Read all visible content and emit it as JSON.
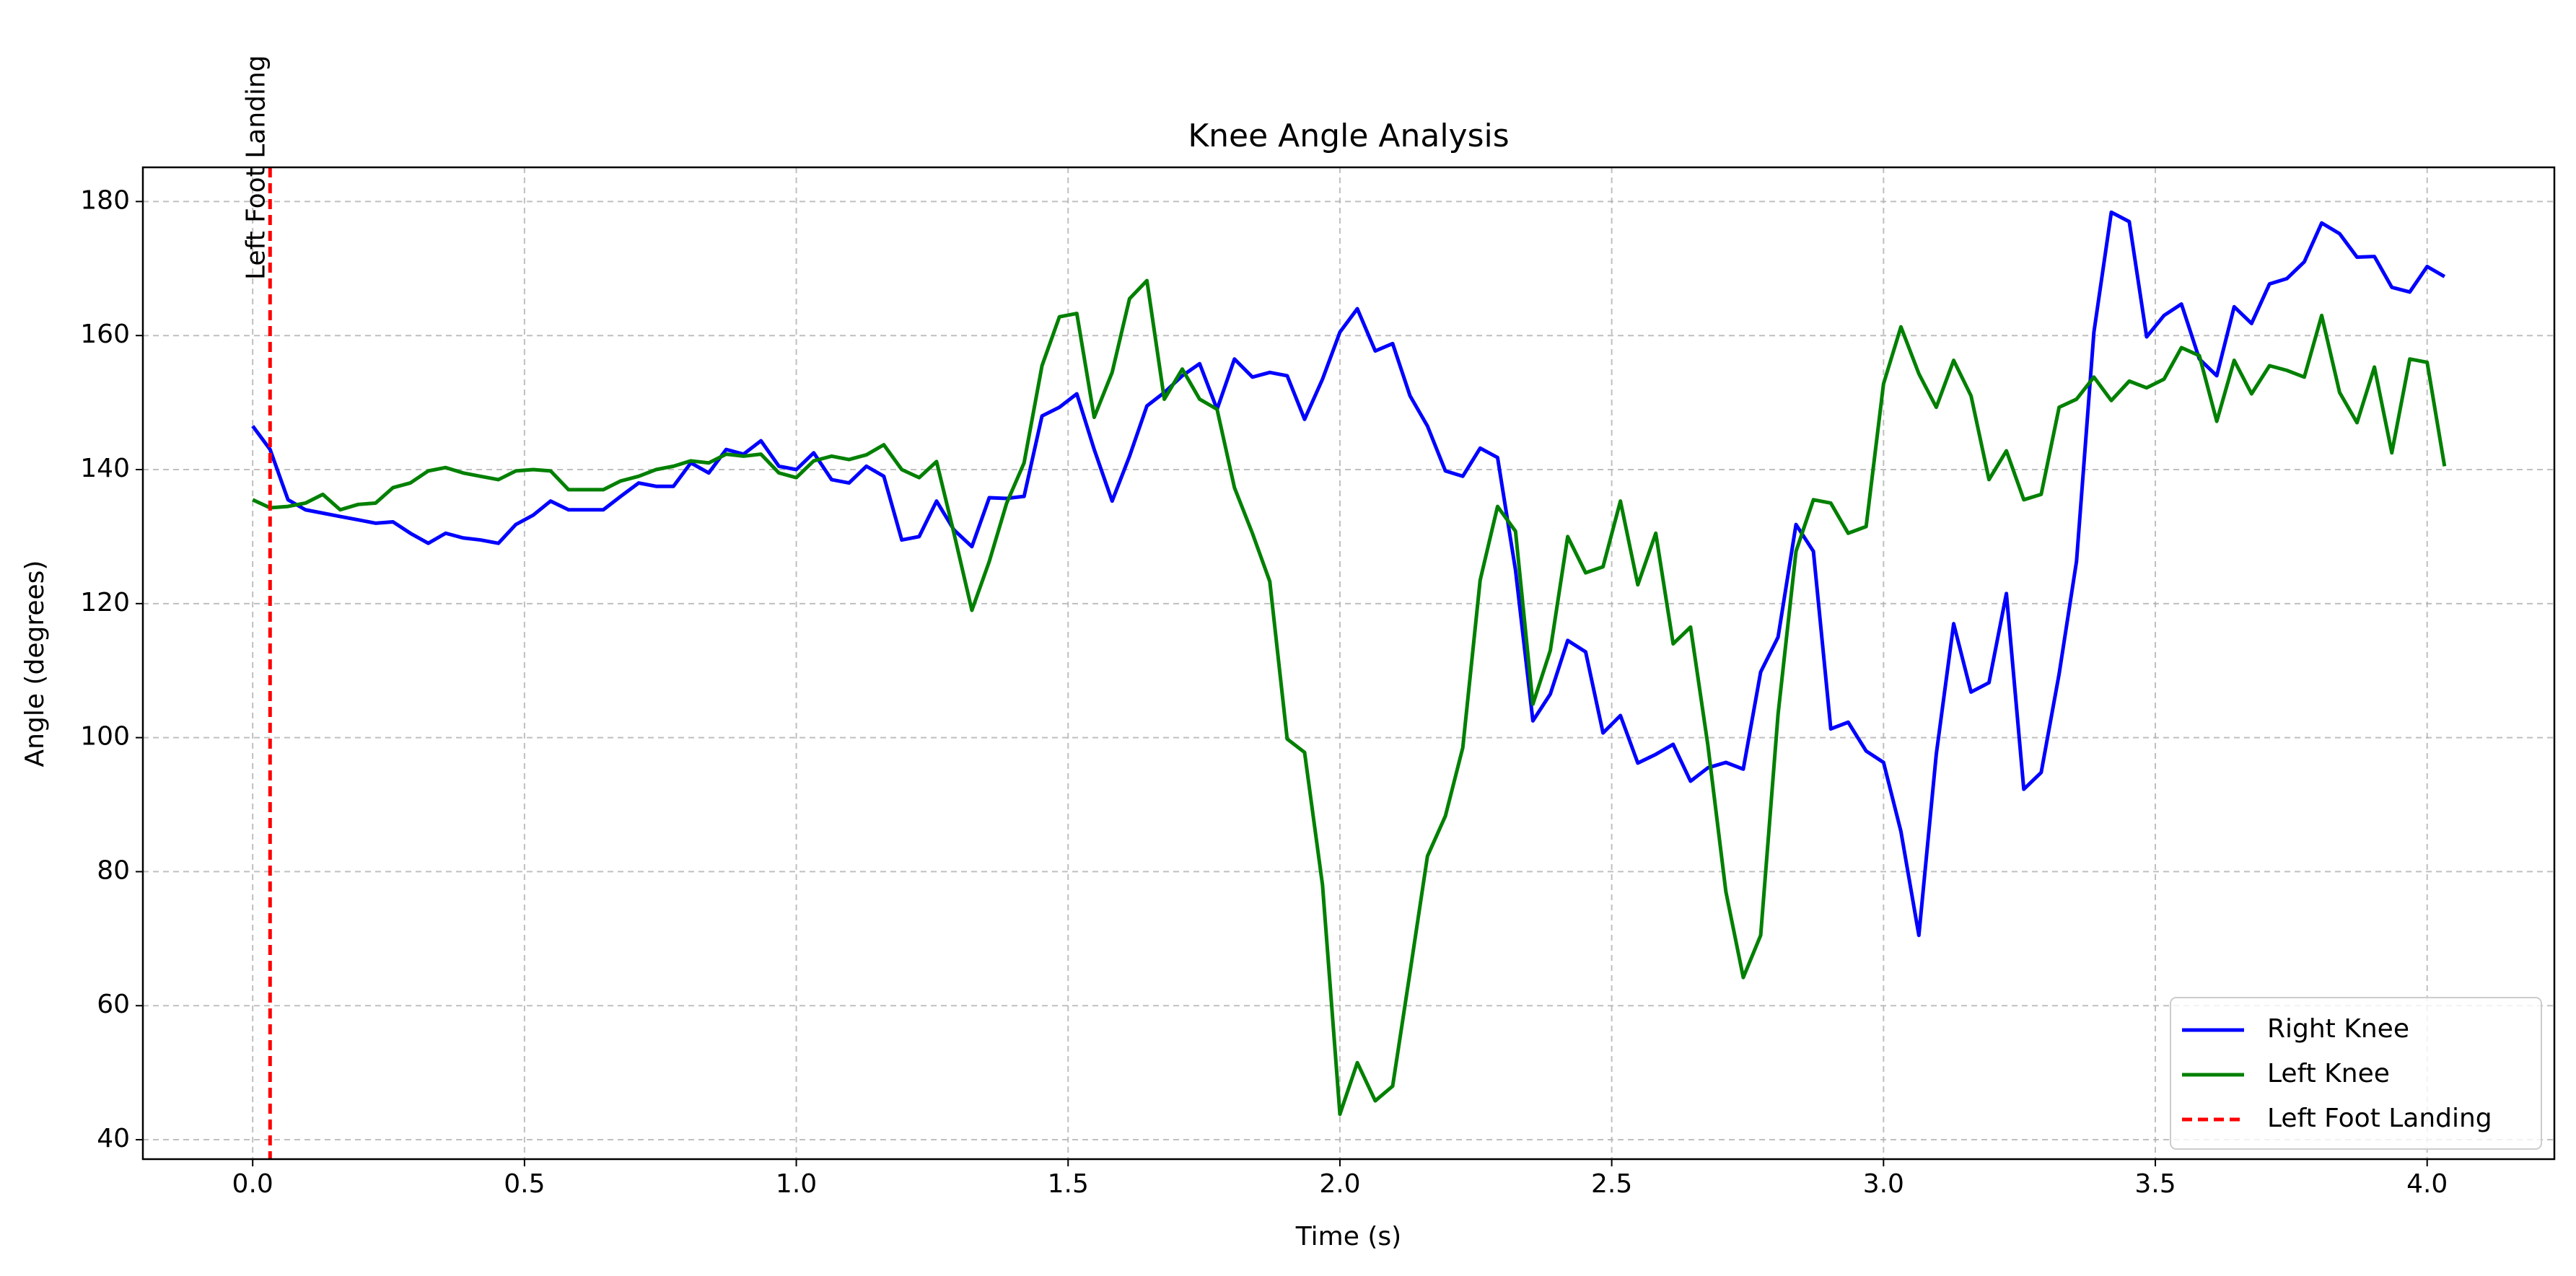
{
  "chart_data": {
    "type": "line",
    "title": "Knee Angle Analysis",
    "x_label": "Time (s)",
    "y_label": "Angle (degrees)",
    "x": [
      0,
      0.032,
      0.065,
      0.097,
      0.129,
      0.161,
      0.194,
      0.226,
      0.258,
      0.29,
      0.323,
      0.355,
      0.387,
      0.419,
      0.452,
      0.484,
      0.516,
      0.548,
      0.581,
      0.613,
      0.645,
      0.677,
      0.71,
      0.742,
      0.774,
      0.806,
      0.839,
      0.871,
      0.903,
      0.935,
      0.968,
      1,
      1.032,
      1.065,
      1.097,
      1.129,
      1.161,
      1.194,
      1.226,
      1.258,
      1.29,
      1.323,
      1.355,
      1.387,
      1.419,
      1.452,
      1.484,
      1.516,
      1.548,
      1.581,
      1.613,
      1.645,
      1.677,
      1.71,
      1.742,
      1.774,
      1.806,
      1.839,
      1.871,
      1.903,
      1.935,
      1.968,
      2,
      2.032,
      2.065,
      2.097,
      2.129,
      2.161,
      2.194,
      2.226,
      2.258,
      2.29,
      2.323,
      2.355,
      2.387,
      2.419,
      2.452,
      2.484,
      2.516,
      2.548,
      2.581,
      2.613,
      2.645,
      2.677,
      2.71,
      2.742,
      2.774,
      2.806,
      2.839,
      2.871,
      2.903,
      2.935,
      2.968,
      3,
      3.032,
      3.065,
      3.097,
      3.129,
      3.161,
      3.194,
      3.226,
      3.258,
      3.29,
      3.323,
      3.355,
      3.387,
      3.419,
      3.452,
      3.484,
      3.516,
      3.548,
      3.581,
      3.613,
      3.645,
      3.677,
      3.71,
      3.742,
      3.774,
      3.806,
      3.839,
      3.871,
      3.903,
      3.935,
      3.968,
      4,
      4.032
    ],
    "series": [
      {
        "name": "Right Knee",
        "color": "blue",
        "values": [
          146.5,
          143,
          135.5,
          134,
          133.5,
          133,
          132.5,
          132,
          132.2,
          130.5,
          129,
          130.5,
          129.8,
          129.5,
          129,
          131.8,
          133.2,
          135.3,
          134,
          134,
          134,
          136,
          138,
          137.5,
          137.5,
          141,
          139.5,
          143,
          142.3,
          144.3,
          140.5,
          140,
          142.5,
          138.5,
          138,
          140.5,
          139,
          129.5,
          130,
          135.3,
          131,
          128.5,
          135.8,
          135.7,
          136,
          148,
          149.3,
          151.3,
          143,
          135.3,
          142,
          149.5,
          151.5,
          154,
          155.8,
          149,
          156.5,
          153.8,
          154.5,
          154,
          147.5,
          153.5,
          160.5,
          164,
          157.7,
          158.8,
          151,
          146.5,
          139.8,
          139,
          143.2,
          141.8,
          125,
          102.5,
          106.5,
          114.5,
          112.8,
          100.7,
          103.3,
          96.2,
          97.5,
          99,
          93.5,
          95.5,
          96.3,
          95.3,
          109.8,
          115,
          131.8,
          127.8,
          101.3,
          102.3,
          98,
          96.3,
          86,
          70.5,
          97.5,
          117,
          106.8,
          108.2,
          121.5,
          92.3,
          94.8,
          109.5,
          126.3,
          160.5,
          178.4,
          177,
          159.8,
          163,
          164.7,
          156.5,
          154,
          164.3,
          161.8,
          167.7,
          168.5,
          171,
          176.8,
          175.2,
          171.7,
          171.8,
          167.2,
          166.5,
          170.3,
          168.8
        ]
      },
      {
        "name": "Left Knee",
        "color": "green",
        "values": [
          135.5,
          134.3,
          134.5,
          135,
          136.3,
          134,
          134.8,
          135,
          137.3,
          138,
          139.8,
          140.3,
          139.5,
          139,
          138.5,
          139.8,
          140,
          139.8,
          137,
          137,
          137,
          138.3,
          139,
          140,
          140.5,
          141.3,
          141,
          142.3,
          142,
          142.3,
          139.5,
          138.8,
          141.3,
          142,
          141.5,
          142.2,
          143.7,
          140,
          138.8,
          141.2,
          130.5,
          119,
          126.3,
          135,
          141,
          155.5,
          162.8,
          163.3,
          147.8,
          154.5,
          165.5,
          168.2,
          150.5,
          155,
          150.5,
          149,
          137.3,
          130.5,
          123.3,
          99.8,
          97.8,
          78,
          43.8,
          51.5,
          45.8,
          48,
          65,
          82.3,
          88.3,
          98.5,
          123.5,
          134.5,
          130.8,
          105,
          113,
          130,
          124.6,
          125.5,
          135.3,
          122.8,
          130.5,
          114,
          116.5,
          98.8,
          77,
          64.2,
          70.5,
          103.5,
          127.8,
          135.5,
          135,
          130.5,
          131.5,
          152.8,
          161.3,
          154.3,
          149.3,
          156.3,
          151,
          138.5,
          142.8,
          135.5,
          136.3,
          149.3,
          150.5,
          153.8,
          150.3,
          153.2,
          152.2,
          153.5,
          158.2,
          157,
          147.2,
          156.3,
          151.3,
          155.5,
          154.8,
          153.8,
          163,
          151.5,
          147,
          155.3,
          142.5,
          156.5,
          156,
          140.5
        ]
      }
    ],
    "vlines": [
      {
        "x": 0.032,
        "name": "Left Foot Landing",
        "color": "red",
        "style": "dashed"
      }
    ],
    "xlim": [
      -0.202,
      4.234
    ],
    "ylim": [
      37.1,
      185.1
    ],
    "xticks": [
      {
        "value": 0,
        "label": "0.0"
      },
      {
        "value": 0.5,
        "label": "0.5"
      },
      {
        "value": 1,
        "label": "1.0"
      },
      {
        "value": 1.5,
        "label": "1.5"
      },
      {
        "value": 2,
        "label": "2.0"
      },
      {
        "value": 2.5,
        "label": "2.5"
      },
      {
        "value": 3,
        "label": "3.0"
      },
      {
        "value": 3.5,
        "label": "3.5"
      },
      {
        "value": 4,
        "label": "4.0"
      }
    ],
    "yticks": [
      40,
      60,
      80,
      100,
      120,
      140,
      160,
      180
    ],
    "grid": true,
    "legend": "lower right"
  }
}
